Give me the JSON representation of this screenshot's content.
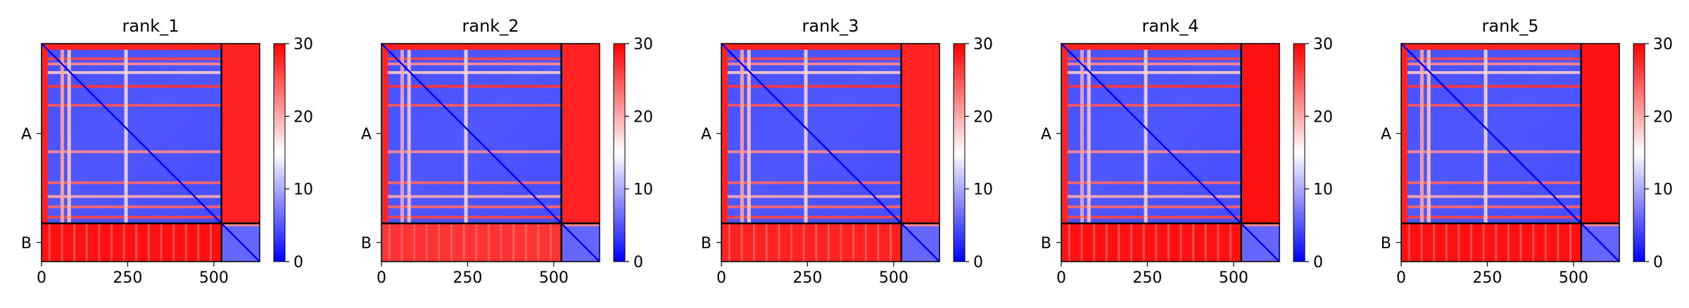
{
  "chart_data": [
    {
      "type": "heatmap",
      "title": "rank_1",
      "xlabel": "",
      "ylabel": "",
      "x_ticks": [
        0,
        250,
        500
      ],
      "y_tick_labels": [
        "A",
        "B"
      ],
      "chain_boundary": 522,
      "n_residues": 633,
      "colorbar": {
        "range": [
          0,
          30
        ],
        "ticks": [
          0,
          10,
          20,
          30
        ],
        "colors": [
          "#0000ff",
          "#ffffff",
          "#ff0000"
        ]
      },
      "value_summary": {
        "A-A_typical": 6,
        "A-B": 28,
        "B-A": 29,
        "B-B_typical": 6,
        "diagonal": 0
      }
    },
    {
      "type": "heatmap",
      "title": "rank_2",
      "xlabel": "",
      "ylabel": "",
      "x_ticks": [
        0,
        250,
        500
      ],
      "y_tick_labels": [
        "A",
        "B"
      ],
      "chain_boundary": 522,
      "n_residues": 633,
      "colorbar": {
        "range": [
          0,
          30
        ],
        "ticks": [
          0,
          10,
          20,
          30
        ],
        "colors": [
          "#0000ff",
          "#ffffff",
          "#ff0000"
        ]
      },
      "value_summary": {
        "A-A_typical": 6,
        "A-B": 28,
        "B-A": 27,
        "B-B_typical": 6,
        "diagonal": 0
      }
    },
    {
      "type": "heatmap",
      "title": "rank_3",
      "xlabel": "",
      "ylabel": "",
      "x_ticks": [
        0,
        250,
        500
      ],
      "y_tick_labels": [
        "A",
        "B"
      ],
      "chain_boundary": 522,
      "n_residues": 633,
      "colorbar": {
        "range": [
          0,
          30
        ],
        "ticks": [
          0,
          10,
          20,
          30
        ],
        "colors": [
          "#0000ff",
          "#ffffff",
          "#ff0000"
        ]
      },
      "value_summary": {
        "A-A_typical": 6,
        "A-B": 28,
        "B-A": 28,
        "B-B_typical": 6,
        "diagonal": 0
      }
    },
    {
      "type": "heatmap",
      "title": "rank_4",
      "xlabel": "",
      "ylabel": "",
      "x_ticks": [
        0,
        250,
        500
      ],
      "y_tick_labels": [
        "A",
        "B"
      ],
      "chain_boundary": 522,
      "n_residues": 633,
      "colorbar": {
        "range": [
          0,
          30
        ],
        "ticks": [
          0,
          10,
          20,
          30
        ],
        "colors": [
          "#0000ff",
          "#ffffff",
          "#ff0000"
        ]
      },
      "value_summary": {
        "A-A_typical": 6,
        "A-B": 29,
        "B-A": 29,
        "B-B_typical": 6,
        "diagonal": 0
      }
    },
    {
      "type": "heatmap",
      "title": "rank_5",
      "xlabel": "",
      "ylabel": "",
      "x_ticks": [
        0,
        250,
        500
      ],
      "y_tick_labels": [
        "A",
        "B"
      ],
      "chain_boundary": 522,
      "n_residues": 633,
      "colorbar": {
        "range": [
          0,
          30
        ],
        "ticks": [
          0,
          10,
          20,
          30
        ],
        "colors": [
          "#0000ff",
          "#ffffff",
          "#ff0000"
        ]
      },
      "value_summary": {
        "A-A_typical": 6,
        "A-B": 29,
        "B-A": 29,
        "B-B_typical": 6,
        "diagonal": 0
      }
    }
  ]
}
